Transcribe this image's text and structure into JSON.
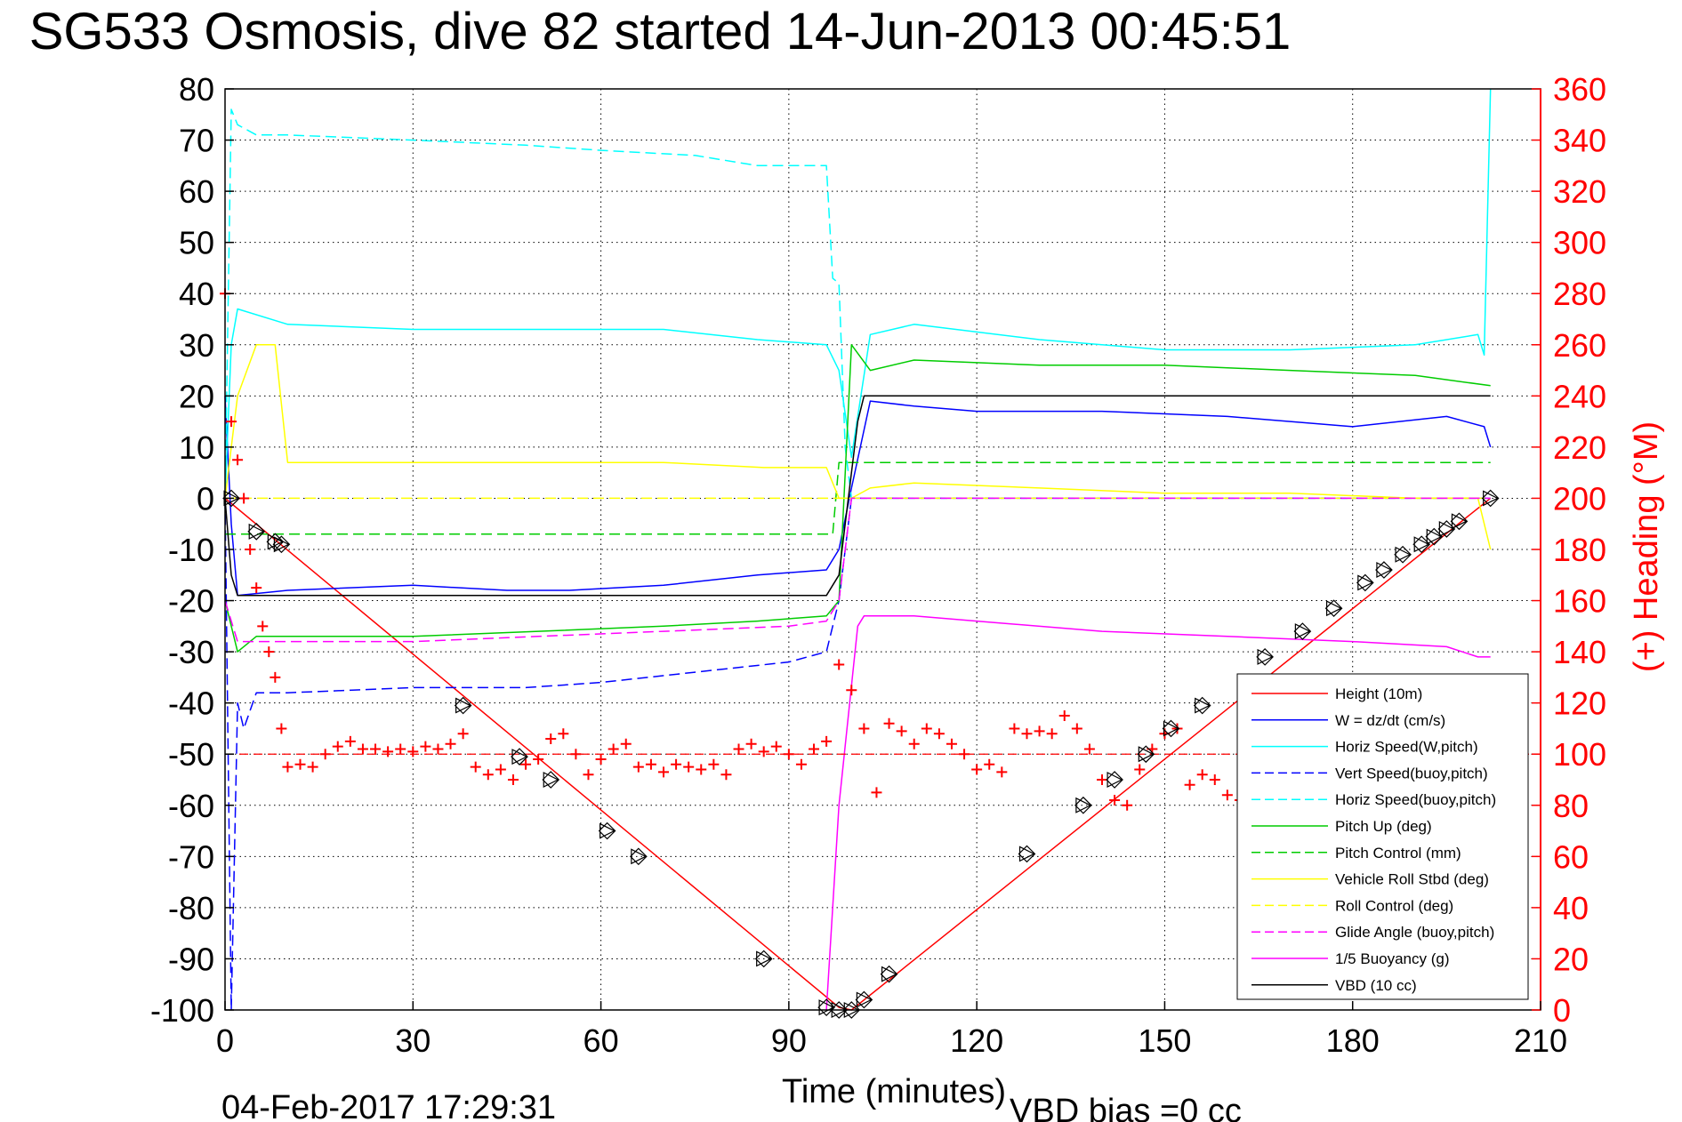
{
  "chart_data": {
    "type": "line",
    "title": "SG533 Osmosis, dive 82 started 14-Jun-2013 00:45:51",
    "xlabel": "Time (minutes)",
    "ylabel": "",
    "y2label": "(+) Heading (°M)",
    "xlim": [
      0,
      210
    ],
    "ylim": [
      -100,
      80
    ],
    "y2lim": [
      0,
      360
    ],
    "xticks": [
      "0",
      "30",
      "60",
      "90",
      "120",
      "150",
      "180",
      "210"
    ],
    "yticks": [
      "80",
      "70",
      "60",
      "50",
      "40",
      "30",
      "20",
      "10",
      "0",
      "-10",
      "-20",
      "-30",
      "-40",
      "-50",
      "-60",
      "-70",
      "-80",
      "-90",
      "-100"
    ],
    "y2ticks": [
      "360",
      "340",
      "320",
      "300",
      "280",
      "260",
      "240",
      "220",
      "200",
      "180",
      "160",
      "140",
      "120",
      "100",
      "80",
      "60",
      "40",
      "20",
      "0"
    ],
    "grid": true,
    "legend_position": "bottom-right",
    "footer_date": "04-Feb-2017 17:29:31",
    "footer_note": "VBD bias =0 cc",
    "series": [
      {
        "name": "Height (10m)",
        "color": "#ff0000",
        "dash": "solid",
        "x": [
          0,
          98,
          100,
          202
        ],
        "y": [
          0,
          -99.5,
          -100,
          0
        ]
      },
      {
        "name": "W = dz/dt (cm/s)",
        "color": "#0000ff",
        "dash": "solid",
        "x": [
          0,
          1,
          2,
          10,
          30,
          45,
          55,
          70,
          85,
          96,
          98,
          100,
          103,
          110,
          120,
          140,
          160,
          180,
          195,
          201,
          202
        ],
        "y": [
          20,
          -5,
          -19,
          -18,
          -17,
          -18,
          -18,
          -17,
          -15,
          -14,
          -10,
          2,
          19,
          18,
          17,
          17,
          16,
          14,
          16,
          14,
          10
        ]
      },
      {
        "name": "Horiz Speed(W,pitch)",
        "color": "#00ffff",
        "dash": "solid",
        "x": [
          0,
          1,
          2,
          10,
          30,
          50,
          70,
          85,
          96,
          98,
          100,
          103,
          110,
          130,
          150,
          170,
          190,
          200,
          201,
          202
        ],
        "y": [
          0,
          30,
          37,
          34,
          33,
          33,
          33,
          31,
          30,
          25,
          8,
          32,
          34,
          31,
          29,
          29,
          30,
          32,
          28,
          80
        ]
      },
      {
        "name": "Vert Speed(buoy,pitch)",
        "color": "#0000ff",
        "dash": "dashed",
        "x": [
          0,
          1,
          2,
          3,
          5,
          10,
          30,
          48,
          60,
          75,
          90,
          96,
          98,
          100,
          101,
          202
        ],
        "y": [
          0,
          -100,
          -40,
          -45,
          -38,
          -38,
          -37,
          -37,
          -36,
          -34,
          -32,
          -30,
          -20,
          0,
          0,
          0
        ]
      },
      {
        "name": "Horiz Speed(buoy,pitch)",
        "color": "#00ffff",
        "dash": "dashed",
        "x": [
          0,
          1,
          2,
          5,
          10,
          30,
          48,
          60,
          75,
          85,
          96,
          97,
          98,
          99,
          100,
          101,
          202
        ],
        "y": [
          0,
          76,
          73,
          71,
          71,
          70,
          69,
          68,
          67,
          65,
          65,
          43,
          42,
          10,
          0,
          0,
          0
        ]
      },
      {
        "name": "Pitch Up (deg)",
        "color": "#00cc00",
        "dash": "solid",
        "x": [
          0,
          2,
          5,
          10,
          30,
          50,
          70,
          85,
          96,
          98,
          100,
          103,
          110,
          130,
          150,
          170,
          190,
          202
        ],
        "y": [
          -20,
          -30,
          -27,
          -27,
          -27,
          -26,
          -25,
          -24,
          -23,
          -20,
          30,
          25,
          27,
          26,
          26,
          25,
          24,
          22
        ]
      },
      {
        "name": "Pitch Control (mm)",
        "color": "#00cc00",
        "dash": "dashed",
        "x": [
          0,
          2,
          3,
          96,
          97,
          98,
          99,
          202
        ],
        "y": [
          -7,
          -7,
          -7,
          -7,
          -7,
          7,
          7,
          7
        ]
      },
      {
        "name": "Vehicle Roll Stbd (deg)",
        "color": "#ffff00",
        "dash": "solid",
        "x": [
          0,
          2,
          5,
          8,
          10,
          30,
          50,
          70,
          86,
          96,
          98,
          100,
          103,
          110,
          130,
          150,
          170,
          190,
          200,
          202
        ],
        "y": [
          0,
          20,
          30,
          30,
          7,
          7,
          7,
          7,
          6,
          6,
          0,
          0,
          2,
          3,
          2,
          1,
          1,
          0,
          0,
          -10
        ]
      },
      {
        "name": "Roll Control (deg)",
        "color": "#ffff00",
        "dash": "dashed",
        "x": [
          0,
          10,
          96,
          100,
          202
        ],
        "y": [
          0,
          0,
          0,
          0,
          0
        ]
      },
      {
        "name": "Glide Angle (buoy,pitch)",
        "color": "#ff00ff",
        "dash": "dashed",
        "x": [
          0,
          2,
          5,
          10,
          30,
          50,
          70,
          90,
          96,
          98,
          100,
          202
        ],
        "y": [
          -20,
          -28,
          -28,
          -28,
          -28,
          -27,
          -26,
          -25,
          -24,
          -20,
          0,
          0
        ]
      },
      {
        "name": "1/5 Buoyancy (g)",
        "color": "#ff00ff",
        "dash": "solid",
        "x": [
          96,
          98,
          101,
          102,
          110,
          120,
          140,
          160,
          180,
          195,
          200,
          202
        ],
        "y": [
          -100,
          -60,
          -25,
          -23,
          -23,
          -24,
          -26,
          -27,
          -28,
          -29,
          -31,
          -31
        ]
      },
      {
        "name": "VBD (10 cc)",
        "color": "#000000",
        "dash": "solid",
        "x": [
          0,
          1,
          2,
          96,
          98,
          101,
          102,
          202
        ],
        "y": [
          0,
          -15,
          -19,
          -19,
          -15,
          15,
          20,
          20
        ]
      }
    ],
    "heading": {
      "color": "#ff0000",
      "reference_value": 100,
      "x": [
        0,
        1,
        2,
        3,
        4,
        5,
        6,
        7,
        8,
        9,
        10,
        12,
        14,
        16,
        18,
        20,
        22,
        24,
        26,
        28,
        30,
        32,
        34,
        36,
        38,
        40,
        42,
        44,
        46,
        48,
        50,
        52,
        54,
        56,
        58,
        60,
        62,
        64,
        66,
        68,
        70,
        72,
        74,
        76,
        78,
        80,
        82,
        84,
        86,
        88,
        90,
        92,
        94,
        96,
        98,
        100,
        102,
        104,
        106,
        108,
        110,
        112,
        114,
        116,
        118,
        120,
        122,
        124,
        126,
        128,
        130,
        132,
        134,
        136,
        138,
        140,
        142,
        144,
        146,
        148,
        150,
        152,
        154,
        156,
        158,
        160,
        162,
        164,
        166,
        168
      ],
      "y": [
        280,
        230,
        215,
        200,
        180,
        165,
        150,
        140,
        130,
        110,
        95,
        96,
        95,
        100,
        103,
        105,
        102,
        102,
        101,
        102,
        101,
        103,
        102,
        104,
        108,
        95,
        92,
        94,
        90,
        96,
        98,
        106,
        108,
        100,
        92,
        98,
        102,
        104,
        95,
        96,
        93,
        96,
        95,
        94,
        96,
        92,
        102,
        104,
        101,
        103,
        100,
        96,
        102,
        105,
        135,
        125,
        110,
        85,
        112,
        109,
        104,
        110,
        108,
        104,
        100,
        94,
        96,
        93,
        110,
        108,
        109,
        108,
        115,
        110,
        102,
        90,
        82,
        80,
        94,
        102,
        108,
        110,
        88,
        92,
        90,
        84,
        82,
        76,
        70,
        56
      ]
    },
    "markers": {
      "symbol": "diamond-triangle",
      "x": [
        1,
        5,
        8,
        9,
        38,
        47,
        52,
        61,
        66,
        86,
        96,
        98,
        100,
        102,
        106,
        128,
        137,
        142,
        147,
        151,
        156,
        166,
        172,
        177,
        182,
        185,
        188,
        191,
        193,
        195,
        197,
        202
      ],
      "y": [
        0,
        -6.5,
        -8.5,
        -9,
        -40.5,
        -50.5,
        -55,
        -65,
        -70,
        -90,
        -99.5,
        -100,
        -100,
        -98,
        -93,
        -69.5,
        -60,
        -55,
        -50,
        -45,
        -40.5,
        -31,
        -26,
        -21.5,
        -16.5,
        -14,
        -11,
        -9,
        -7.5,
        -6,
        -4.5,
        0
      ]
    }
  }
}
